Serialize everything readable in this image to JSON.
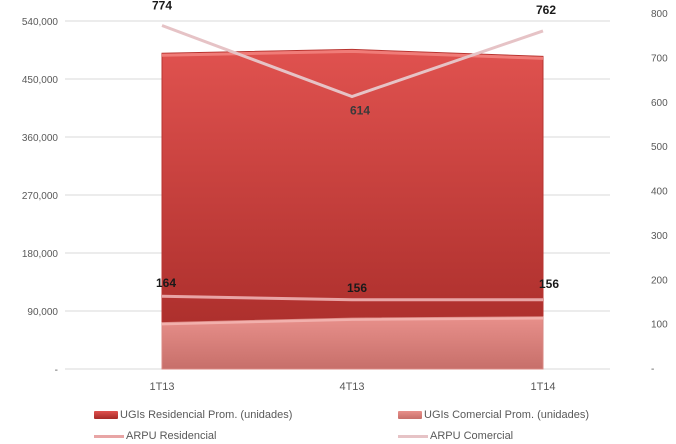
{
  "chart_data": {
    "type": "area",
    "categories": [
      "1T13",
      "4T13",
      "1T14"
    ],
    "y_left": {
      "ticks": [
        "-",
        "90,000",
        "180,000",
        "270,000",
        "360,000",
        "450,000",
        "540,000"
      ],
      "range": [
        0,
        540000
      ]
    },
    "y_right": {
      "ticks": [
        "-",
        "100",
        "200",
        "300",
        "400",
        "500",
        "600",
        "700",
        "800"
      ],
      "range": [
        0,
        800
      ]
    },
    "series": [
      {
        "name": "UGIs Residencial Prom. (unidades)",
        "kind": "area",
        "axis": "left",
        "values": [
          490000,
          496000,
          485000
        ],
        "color_top": "#e0524f",
        "color_bottom": "#a52a27"
      },
      {
        "name": "UGIs Comercial Prom. (unidades)",
        "kind": "area",
        "axis": "left",
        "values": [
          72000,
          79000,
          81000
        ],
        "color_top": "#e8908b",
        "color_bottom": "#c76f6a"
      },
      {
        "name": "ARPU Residencial",
        "kind": "line",
        "axis": "right",
        "values": [
          164,
          156,
          156
        ],
        "labels": [
          "164",
          "156",
          "156"
        ],
        "color": "#e8a5a5"
      },
      {
        "name": "ARPU Comercial",
        "kind": "line",
        "axis": "right",
        "values": [
          774,
          614,
          762
        ],
        "labels": [
          "774",
          "614",
          "762"
        ],
        "color": "#e6c3c6"
      }
    ],
    "legend_position": "bottom",
    "grid": true
  }
}
